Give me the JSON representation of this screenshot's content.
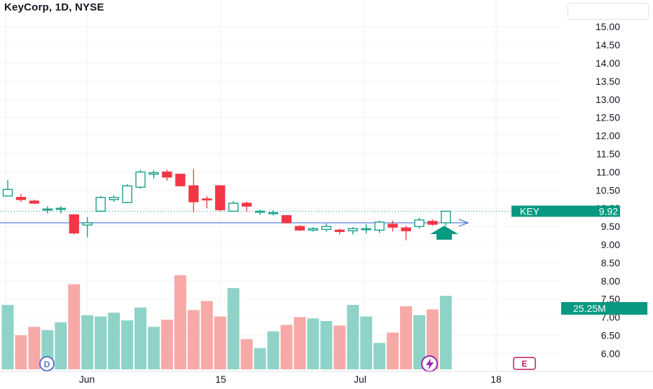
{
  "header": {
    "title": "KeyCorp, 1D, NYSE"
  },
  "colors": {
    "up": "#089981",
    "down": "#f23645",
    "up_volume": "#8fd3c8",
    "down_volume": "#f7a9a7",
    "trendline": "#4a74d9",
    "arrow": "#089981"
  },
  "price_label": {
    "symbol": "KEY",
    "value": "9.92"
  },
  "volume_label": {
    "value": "25.25M"
  },
  "markers": {
    "dividend": "D",
    "earnings": "E",
    "split_icon": "lightning-icon"
  },
  "chart_data": {
    "type": "candlestick",
    "title": "KeyCorp, 1D, NYSE",
    "y_ticks": [
      "15.00",
      "14.50",
      "14.00",
      "13.50",
      "13.00",
      "12.50",
      "12.00",
      "11.50",
      "11.00",
      "10.50",
      "10.00",
      "9.50",
      "9.00",
      "8.50",
      "8.00",
      "7.50",
      "7.00",
      "6.50",
      "6.00"
    ],
    "x_ticks": [
      "Jun",
      "15",
      "Jul",
      "18"
    ],
    "ylim": [
      6.0,
      15.0
    ],
    "trendline_level": 9.6,
    "candles": [
      {
        "o": 10.34,
        "h": 10.78,
        "l": 10.34,
        "c": 10.52,
        "v": 1.0
      },
      {
        "o": 10.3,
        "h": 10.4,
        "l": 10.18,
        "c": 10.24,
        "v": 0.53
      },
      {
        "o": 10.2,
        "h": 10.24,
        "l": 10.12,
        "c": 10.14,
        "v": 0.66
      },
      {
        "o": 9.96,
        "h": 10.06,
        "l": 9.86,
        "c": 9.98,
        "v": 0.61
      },
      {
        "o": 9.98,
        "h": 10.06,
        "l": 9.86,
        "c": 10.0,
        "v": 0.73
      },
      {
        "o": 9.82,
        "h": 9.84,
        "l": 9.28,
        "c": 9.32,
        "v": 1.32
      },
      {
        "o": 9.54,
        "h": 9.76,
        "l": 9.2,
        "c": 9.6,
        "v": 0.84
      },
      {
        "o": 9.92,
        "h": 10.34,
        "l": 9.9,
        "c": 10.3,
        "v": 0.82
      },
      {
        "o": 10.24,
        "h": 10.36,
        "l": 10.18,
        "c": 10.3,
        "v": 0.88
      },
      {
        "o": 10.16,
        "h": 10.66,
        "l": 10.14,
        "c": 10.62,
        "v": 0.76
      },
      {
        "o": 10.58,
        "h": 11.06,
        "l": 10.54,
        "c": 11.0,
        "v": 0.96
      },
      {
        "o": 10.94,
        "h": 11.04,
        "l": 10.82,
        "c": 10.98,
        "v": 0.66
      },
      {
        "o": 11.0,
        "h": 11.06,
        "l": 10.76,
        "c": 10.86,
        "v": 0.77
      },
      {
        "o": 10.94,
        "h": 10.94,
        "l": 10.62,
        "c": 10.62,
        "v": 1.46
      },
      {
        "o": 10.62,
        "h": 11.08,
        "l": 9.88,
        "c": 10.18,
        "v": 0.92
      },
      {
        "o": 10.26,
        "h": 10.34,
        "l": 10.0,
        "c": 10.24,
        "v": 1.06
      },
      {
        "o": 10.62,
        "h": 10.64,
        "l": 9.92,
        "c": 9.96,
        "v": 0.82
      },
      {
        "o": 9.92,
        "h": 10.2,
        "l": 9.92,
        "c": 10.14,
        "v": 1.26
      },
      {
        "o": 10.14,
        "h": 10.18,
        "l": 9.9,
        "c": 10.06,
        "v": 0.47
      },
      {
        "o": 9.92,
        "h": 9.96,
        "l": 9.82,
        "c": 9.92,
        "v": 0.33
      },
      {
        "o": 9.88,
        "h": 9.94,
        "l": 9.8,
        "c": 9.88,
        "v": 0.59
      },
      {
        "o": 9.8,
        "h": 9.8,
        "l": 9.58,
        "c": 9.6,
        "v": 0.69
      },
      {
        "o": 9.5,
        "h": 9.54,
        "l": 9.38,
        "c": 9.4,
        "v": 0.81
      },
      {
        "o": 9.4,
        "h": 9.48,
        "l": 9.36,
        "c": 9.44,
        "v": 0.79
      },
      {
        "o": 9.42,
        "h": 9.58,
        "l": 9.36,
        "c": 9.5,
        "v": 0.75
      },
      {
        "o": 9.4,
        "h": 9.44,
        "l": 9.28,
        "c": 9.36,
        "v": 0.68
      },
      {
        "o": 9.38,
        "h": 9.48,
        "l": 9.28,
        "c": 9.44,
        "v": 1.0
      },
      {
        "o": 9.42,
        "h": 9.56,
        "l": 9.3,
        "c": 9.44,
        "v": 0.82
      },
      {
        "o": 9.4,
        "h": 9.66,
        "l": 9.32,
        "c": 9.62,
        "v": 0.41
      },
      {
        "o": 9.56,
        "h": 9.66,
        "l": 9.36,
        "c": 9.48,
        "v": 0.57
      },
      {
        "o": 9.46,
        "h": 9.52,
        "l": 9.12,
        "c": 9.38,
        "v": 0.98
      },
      {
        "o": 9.5,
        "h": 9.74,
        "l": 9.44,
        "c": 9.68,
        "v": 0.84
      },
      {
        "o": 9.64,
        "h": 9.7,
        "l": 9.52,
        "c": 9.56,
        "v": 0.93
      },
      {
        "o": 9.6,
        "h": 9.92,
        "l": 9.52,
        "c": 9.92,
        "v": 1.14
      }
    ]
  }
}
